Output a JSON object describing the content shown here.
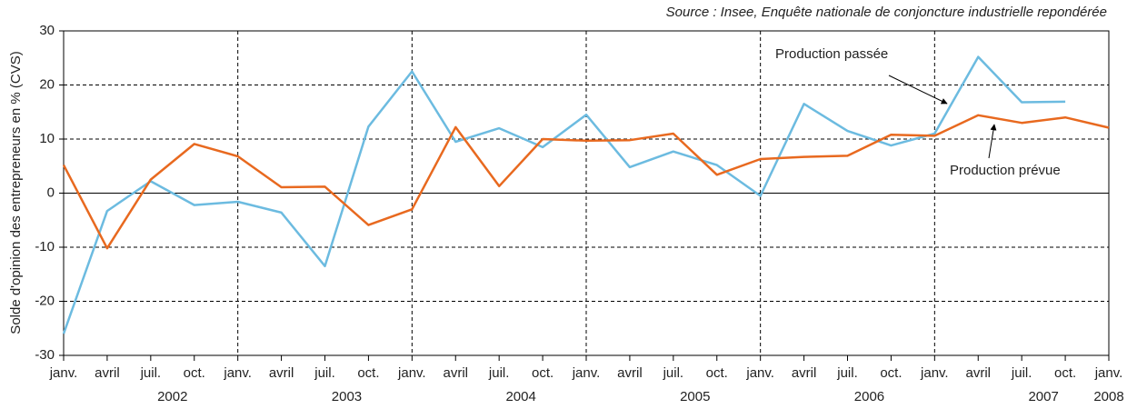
{
  "chart_data": {
    "type": "line",
    "source": "Source : Insee, Enquête nationale de conjoncture industrielle repondérée",
    "y_label": "Solde d'opinion des entrepreneurs en % (CVS)",
    "categories": [
      "janv.",
      "avril",
      "juil.",
      "oct.",
      "janv.",
      "avril",
      "juil.",
      "oct.",
      "janv.",
      "avril",
      "juil.",
      "oct.",
      "janv.",
      "avril",
      "juil.",
      "oct.",
      "janv.",
      "avril",
      "juil.",
      "oct.",
      "janv.",
      "avril",
      "juil.",
      "oct.",
      "janv."
    ],
    "year_labels": [
      "2002",
      "2003",
      "2004",
      "2005",
      "2006",
      "2007",
      "2008"
    ],
    "series": [
      {
        "name": "Production passée",
        "color": "#6cbbe0",
        "values": [
          -26,
          -3.3,
          2.2,
          -2.2,
          -1.6,
          -3.6,
          -13.5,
          12.3,
          22.5,
          9.5,
          12,
          8.5,
          14.5,
          4.8,
          7.7,
          5.2,
          -0.5,
          16.5,
          11.5,
          8.8,
          11,
          25.2,
          16.8,
          16.9,
          null
        ]
      },
      {
        "name": "Production prévue",
        "color": "#e8691f",
        "values": [
          5.2,
          -10.2,
          2.5,
          9.1,
          6.8,
          1.1,
          1.2,
          -5.9,
          -3,
          12.2,
          1.3,
          10,
          9.7,
          9.8,
          11,
          3.4,
          6.3,
          6.7,
          6.9,
          10.8,
          10.6,
          14.4,
          13,
          14,
          12.1
        ]
      }
    ],
    "ylim": [
      -30,
      30
    ],
    "yticks": [
      -30,
      -20,
      -10,
      0,
      10,
      20,
      30
    ],
    "grid": true
  }
}
